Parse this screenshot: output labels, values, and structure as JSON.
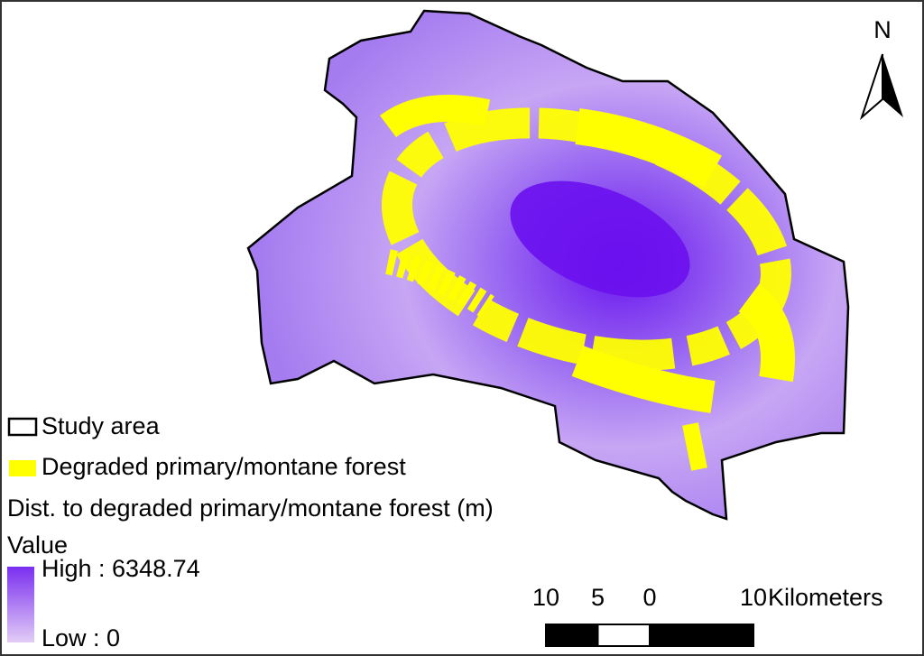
{
  "north_label": "N",
  "legend": {
    "items": [
      {
        "label": "Study area"
      },
      {
        "label": "Degraded primary/montane forest"
      }
    ],
    "layer_title": "Dist. to degraded primary/montane forest (m)",
    "field": "Value",
    "high_label": "High : 6348.74",
    "low_label": "Low : 0"
  },
  "scale_bar": {
    "ticks": [
      {
        "value": -10,
        "label": "10"
      },
      {
        "value": -5,
        "label": "5"
      },
      0,
      10
    ],
    "unit": "Kilometers"
  }
}
